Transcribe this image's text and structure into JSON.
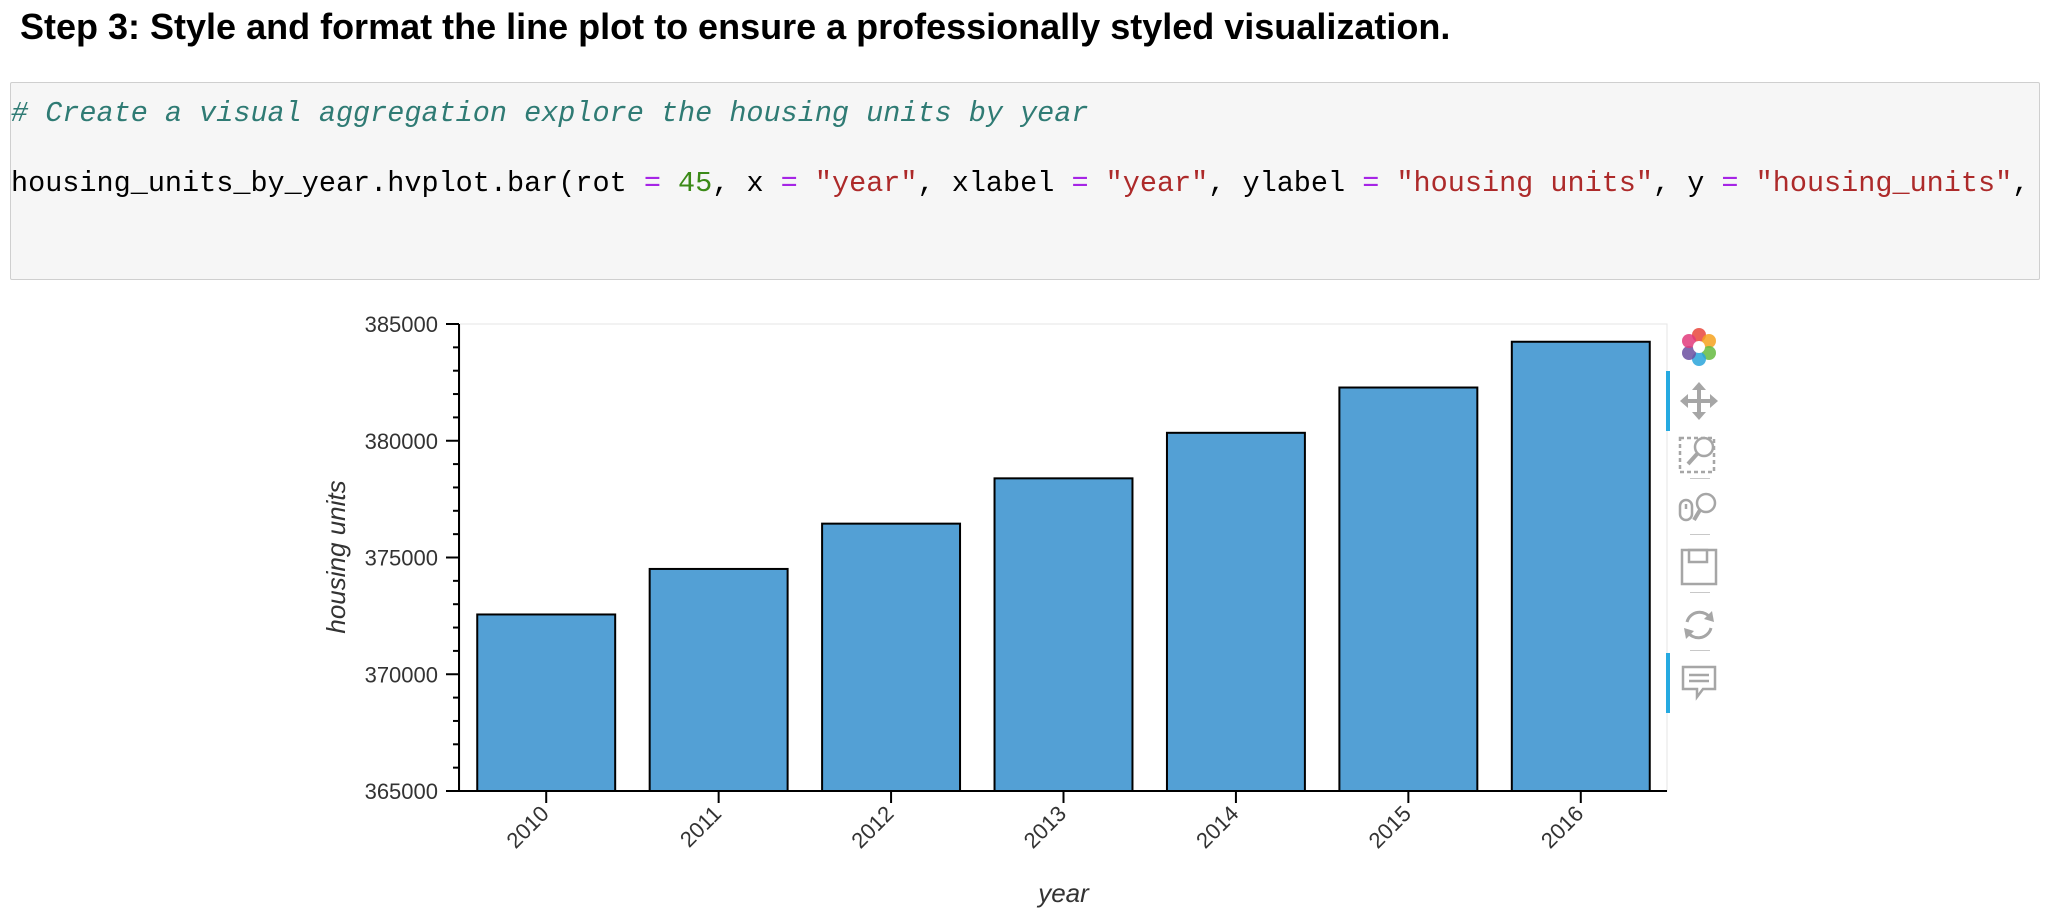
{
  "page": {
    "heading": "Step 3: Style and format the line plot to ensure a professionally styled visualization."
  },
  "code_cell": {
    "comment": "# Create a visual aggregation explore the housing units by year",
    "call_tokens": [
      {
        "text": "housing_units_by_year.hvplot.bar(rot ",
        "kind": "plain"
      },
      {
        "text": "=",
        "kind": "op"
      },
      {
        "text": " ",
        "kind": "plain"
      },
      {
        "text": "45",
        "kind": "num"
      },
      {
        "text": ", x ",
        "kind": "plain"
      },
      {
        "text": "=",
        "kind": "op"
      },
      {
        "text": " ",
        "kind": "plain"
      },
      {
        "text": "\"year\"",
        "kind": "str"
      },
      {
        "text": ", xlabel ",
        "kind": "plain"
      },
      {
        "text": "=",
        "kind": "op"
      },
      {
        "text": " ",
        "kind": "plain"
      },
      {
        "text": "\"year\"",
        "kind": "str"
      },
      {
        "text": ", ylabel ",
        "kind": "plain"
      },
      {
        "text": "=",
        "kind": "op"
      },
      {
        "text": " ",
        "kind": "plain"
      },
      {
        "text": "\"housing units\"",
        "kind": "str"
      },
      {
        "text": ", y ",
        "kind": "plain"
      },
      {
        "text": "=",
        "kind": "op"
      },
      {
        "text": " ",
        "kind": "plain"
      },
      {
        "text": "\"housing_units\"",
        "kind": "str"
      },
      {
        "text": ", y",
        "kind": "plain"
      }
    ]
  },
  "toolbar": {
    "tools": [
      {
        "name": "bokeh-logo",
        "icon": "bokeh-logo-icon",
        "active": false,
        "interactable": true
      },
      {
        "name": "pan-tool",
        "icon": "pan-icon",
        "active": true,
        "interactable": true
      },
      {
        "name": "box-zoom-tool",
        "icon": "box-zoom-icon",
        "active": false,
        "interactable": true
      },
      {
        "name": "wheel-zoom-tool",
        "icon": "wheel-zoom-icon",
        "active": false,
        "interactable": true
      },
      {
        "name": "save-tool",
        "icon": "save-icon",
        "active": false,
        "interactable": true
      },
      {
        "name": "reset-tool",
        "icon": "reset-icon",
        "active": false,
        "interactable": true
      },
      {
        "name": "hover-tool",
        "icon": "hover-icon",
        "active": true,
        "interactable": true
      }
    ]
  },
  "chart_data": {
    "type": "bar",
    "categories": [
      "2010",
      "2011",
      "2012",
      "2013",
      "2014",
      "2015",
      "2016"
    ],
    "values": [
      372560,
      374510,
      376450,
      378390,
      380340,
      382280,
      384240
    ],
    "xlabel": "year",
    "ylabel": "housing units",
    "ylim": [
      365000,
      385000
    ],
    "yticks": [
      "365000",
      "370000",
      "375000",
      "380000",
      "385000"
    ],
    "x_tick_rotation": 45,
    "grid": false,
    "bar_color": "#53a0d5",
    "bar_edge_color": "#000000"
  }
}
